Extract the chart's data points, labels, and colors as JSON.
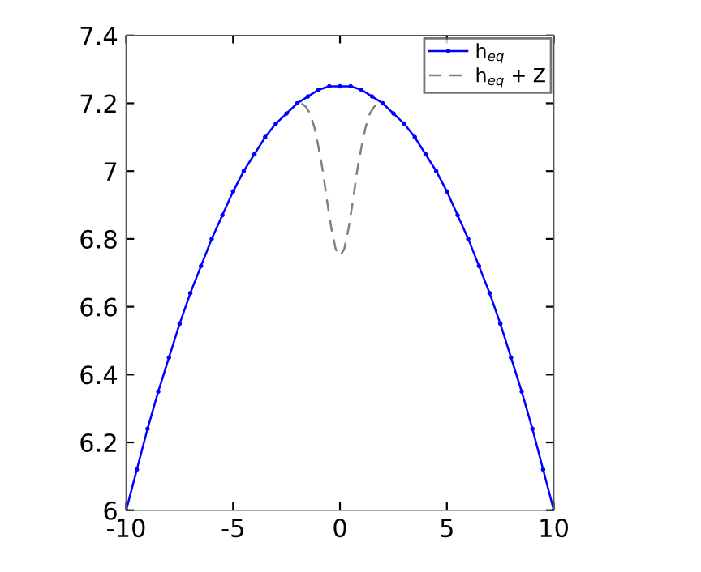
{
  "chart_data": {
    "type": "line",
    "xlim": [
      -10,
      10
    ],
    "ylim": [
      6,
      7.4
    ],
    "xticks": [
      -10,
      -5,
      0,
      5,
      10
    ],
    "yticks": [
      6,
      6.2,
      6.4,
      6.6,
      6.8,
      7,
      7.2,
      7.4
    ],
    "grid": false,
    "legend": "top right",
    "series": [
      {
        "name": "h$_{eq}$",
        "color": "#0000ff",
        "marker": "circle",
        "line_style": "solid",
        "x": [
          -10,
          -9.5,
          -9,
          -8.5,
          -8,
          -7.5,
          -7,
          -6.5,
          -6,
          -5.5,
          -5,
          -4.5,
          -4,
          -3.5,
          -3,
          -2.5,
          -2,
          -1.5,
          -1,
          -0.5,
          0,
          0.5,
          1,
          1.5,
          2,
          2.5,
          3,
          3.5,
          4,
          4.5,
          5,
          5.5,
          6,
          6.5,
          7,
          7.5,
          8,
          8.5,
          9,
          9.5,
          10
        ],
        "values": [
          6.0,
          6.12,
          6.24,
          6.35,
          6.45,
          6.55,
          6.64,
          6.72,
          6.8,
          6.87,
          6.94,
          7.0,
          7.05,
          7.1,
          7.14,
          7.17,
          7.2,
          7.22,
          7.24,
          7.25,
          7.25,
          7.25,
          7.24,
          7.22,
          7.2,
          7.17,
          7.14,
          7.1,
          7.05,
          7.0,
          6.94,
          6.87,
          6.8,
          6.72,
          6.64,
          6.55,
          6.45,
          6.35,
          6.24,
          6.12,
          6.0
        ]
      },
      {
        "name": "h$_{eq}$ + Z",
        "color": "#808080",
        "marker": "none",
        "line_style": "dashed",
        "x": [
          -1.8,
          -1.6,
          -1.4,
          -1.2,
          -1,
          -0.8,
          -0.6,
          -0.4,
          -0.2,
          0,
          0.2,
          0.4,
          0.6,
          0.8,
          1,
          1.2,
          1.4,
          1.6,
          1.8
        ],
        "values": [
          7.2,
          7.19,
          7.17,
          7.13,
          7.07,
          7.0,
          6.91,
          6.83,
          6.77,
          6.75,
          6.77,
          6.83,
          6.91,
          7.0,
          7.07,
          7.13,
          7.17,
          7.19,
          7.2
        ]
      }
    ]
  }
}
